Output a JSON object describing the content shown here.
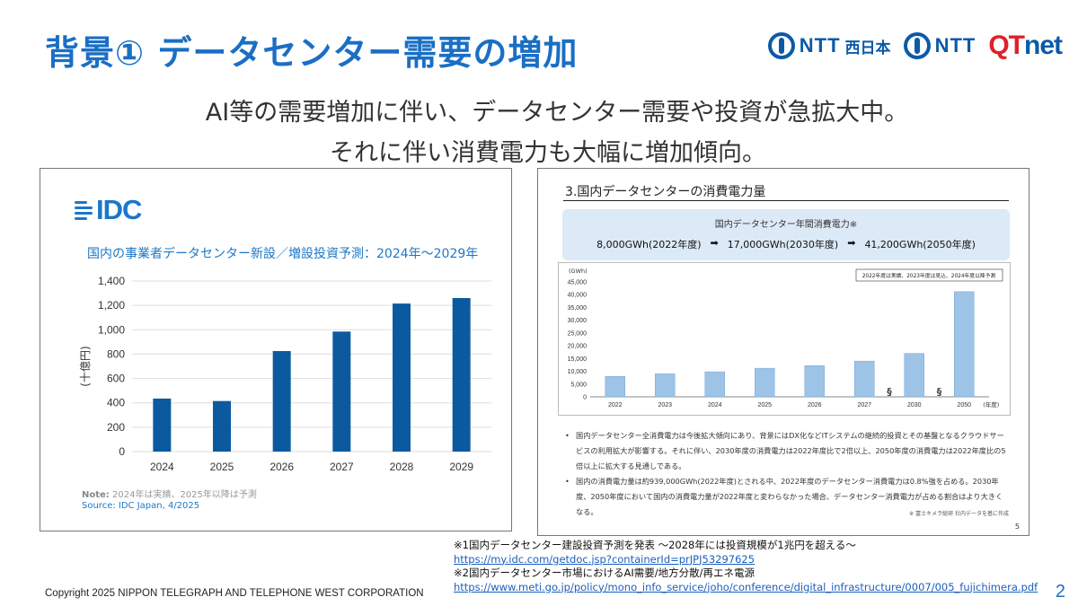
{
  "header": {
    "title": "背景① データセンター需要の増加",
    "logos": {
      "ntt_west": "NTT",
      "ntt_west_sub": "西日本",
      "ntt": "NTT",
      "qtnet_q": "Q",
      "qtnet_t": "T",
      "qtnet_net": "net"
    }
  },
  "lead": {
    "line1": "AI等の需要増加に伴い、データセンター需要や投資が急拡大中。",
    "line2": "それに伴い消費電力も大幅に増加傾向。"
  },
  "idc_panel": {
    "logo_text": "IDC",
    "note_label": "Note:",
    "note_text": " 2024年は実績、2025年以降は予測",
    "source": "Source: IDC Japan, 4/2025"
  },
  "meti_panel": {
    "heading": "3.国内データセンターの消費電力量",
    "box_title": "国内データセンター年間消費電力※",
    "box_values": [
      "8,000GWh(2022年度)",
      "17,000GWh(2030年度)",
      "41,200GWh(2050年度)"
    ],
    "bullets": [
      "国内データセンター全消費電力は今後拡大傾向にあり、背景にはDX化などITシステムの継続的投資とその基盤となるクラウドサービスの利用拡大が影響する。それに伴い、2030年度の消費電力は2022年度比で2倍以上、2050年度の消費電力は2022年度比の5倍以上に拡大する見通しである。",
      "国内の消費電力量は約939,000GWh(2022年度)とされる中、2022年度のデータセンター消費電力は0.8%強を占める。2030年度、2050年度において国内の消費電力量が2022年度と変わらなかった場合、データセンター消費電力が占める割合はより大きくなる。"
    ],
    "source_note": "※ 富士キメラ総研 社内データを基に作成",
    "page": "5"
  },
  "chart_data": [
    {
      "type": "bar",
      "title": "国内の事業者データセンター新設／増設投資予測：2024年～2029年",
      "categories": [
        "2024",
        "2025",
        "2026",
        "2027",
        "2028",
        "2029"
      ],
      "values": [
        435,
        415,
        825,
        985,
        1215,
        1260
      ],
      "xlabel": "",
      "ylabel": "(十億円)",
      "ylim": [
        0,
        1400
      ],
      "yticks": [
        "0",
        "200",
        "400",
        "600",
        "800",
        "1,000",
        "1,200",
        "1,400"
      ],
      "grid": true,
      "bar_color": "#0b5aa0"
    },
    {
      "type": "bar",
      "title": "",
      "categories": [
        "2022",
        "2023",
        "2024",
        "2025",
        "2026",
        "2027",
        "2030",
        "2050"
      ],
      "values": [
        8000,
        9000,
        9800,
        11200,
        12200,
        14000,
        17000,
        41200
      ],
      "xlabel": "(年度)",
      "ylabel": "(GWh)",
      "ylim": [
        0,
        45000
      ],
      "yticks": [
        "0",
        "5,000",
        "10,000",
        "15,000",
        "20,000",
        "25,000",
        "30,000",
        "35,000",
        "40,000",
        "45,000"
      ],
      "break_marks": [
        "§",
        "§"
      ],
      "annotation": "2022年度は実績、2023年度は見込、2024年度以降予測",
      "bar_color": "#9dc3e6"
    }
  ],
  "footnotes": {
    "note1": "※1国内データセンター建設投資予測を発表 ～2028年には投資規模が1兆円を超える～",
    "link1": "https://my.idc.com/getdoc.jsp?containerId=prJPJ53297625",
    "note2": "※2国内データセンター市場におけるAI需要/地方分散/再エネ電源",
    "link2": "https://www.meti.go.jp/policy/mono_info_service/joho/conference/digital_infrastructure/0007/005_fujichimera.pdf"
  },
  "copyright": "Copyright 2025 NIPPON TELEGRAPH AND TELEPHONE WEST CORPORATION",
  "page_number": "2"
}
